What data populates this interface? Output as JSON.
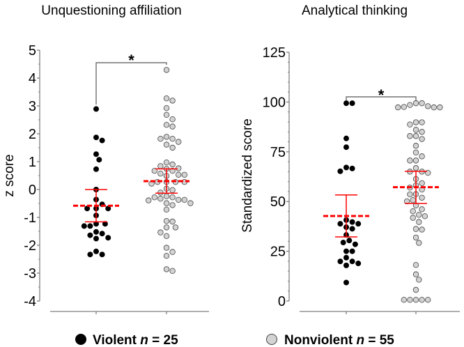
{
  "chart_data": [
    {
      "type": "scatter",
      "subtype": "dot-plot",
      "title": "Unquestioning affiliation",
      "ylabel": "z score",
      "ylim": [
        -4,
        5
      ],
      "yticks": [
        "-4",
        "-3",
        "-2",
        "-1",
        "0",
        "1",
        "2",
        "3",
        "4",
        "5"
      ],
      "significance": "*",
      "series": [
        {
          "name": "Violent",
          "n": 25,
          "mean": -0.58,
          "ci": [
            -1.16,
            0.0
          ],
          "values": [
            2.89,
            1.87,
            1.76,
            1.27,
            1.07,
            0.73,
            0.0,
            -0.36,
            -0.53,
            -0.68,
            -0.68,
            -0.68,
            -0.93,
            -1.23,
            -1.23,
            -1.31,
            -1.31,
            -1.52,
            -1.58,
            -1.64,
            -1.73,
            -1.76,
            -2.22,
            -2.33,
            -2.33
          ]
        },
        {
          "name": "Nonviolent",
          "n": 55,
          "mean": 0.3,
          "ci": [
            -0.13,
            0.74
          ],
          "values": [
            4.29,
            3.27,
            3.19,
            2.92,
            2.68,
            2.52,
            2.32,
            2.26,
            1.89,
            1.82,
            1.82,
            1.71,
            1.61,
            1.5,
            0.97,
            0.9,
            0.84,
            0.76,
            0.74,
            0.67,
            0.67,
            0.57,
            0.53,
            0.53,
            0.49,
            0.27,
            0.27,
            0.27,
            0.27,
            0.21,
            0.03,
            -0.02,
            -0.11,
            -0.24,
            -0.28,
            -0.28,
            -0.33,
            -0.37,
            -0.37,
            -0.39,
            -0.49,
            -0.49,
            -0.56,
            -0.72,
            -1.13,
            -1.15,
            -1.36,
            -1.36,
            -1.54,
            -1.67,
            -2.09,
            -2.24,
            -2.38,
            -2.86,
            -2.92
          ]
        }
      ]
    },
    {
      "type": "scatter",
      "subtype": "dot-plot",
      "title": "Analytical thinking",
      "ylabel": "Standardized score",
      "ylim": [
        0,
        125
      ],
      "yticks": [
        "0",
        "25",
        "50",
        "75",
        "100",
        "125"
      ],
      "significance": "*",
      "series": [
        {
          "name": "Violent",
          "n": 25,
          "mean": 42.7,
          "ci": [
            32.2,
            53.3
          ],
          "values": [
            99.4,
            99.4,
            81.7,
            77.3,
            67.1,
            66.6,
            65.2,
            40.7,
            39.7,
            38.8,
            38.8,
            37.1,
            36.3,
            33.2,
            30.4,
            29.4,
            28.5,
            25,
            25,
            21.8,
            19.9,
            19.9,
            18.9,
            17.9,
            9.3
          ]
        },
        {
          "name": "Nonviolent",
          "n": 55,
          "mean": 57.2,
          "ci": [
            49.0,
            65.2
          ],
          "values": [
            99.4,
            97.9,
            97.3,
            97.3,
            98.5,
            97.3,
            99.4,
            97.5,
            89.8,
            89.8,
            88.7,
            86,
            85,
            82.9,
            82.9,
            81.4,
            78,
            74.6,
            72.7,
            70.6,
            70.6,
            66.8,
            65,
            65,
            64.4,
            61.3,
            59.2,
            58.1,
            57,
            56,
            53.7,
            53.6,
            51.9,
            50.7,
            50.1,
            48,
            46.1,
            45.1,
            43.3,
            42.6,
            41.8,
            39.7,
            36.2,
            35.9,
            31.9,
            29.2,
            18.1,
            13.4,
            10.7,
            5.6,
            0.6,
            0.6,
            0.6,
            0.6,
            0.6
          ]
        }
      ]
    }
  ],
  "legend": {
    "items": [
      {
        "label": "Violent",
        "n_label": "n",
        "n_text": " = 25",
        "color": "#000000"
      },
      {
        "label": "Nonviolent",
        "n_label": "n",
        "n_text": " = 55",
        "color": "#d3d3d3"
      }
    ]
  },
  "colors": {
    "mean_line": "#ff0000",
    "axis": "#7f7f7f",
    "violent": "#000000",
    "nonviolent": "#d3d3d3"
  }
}
